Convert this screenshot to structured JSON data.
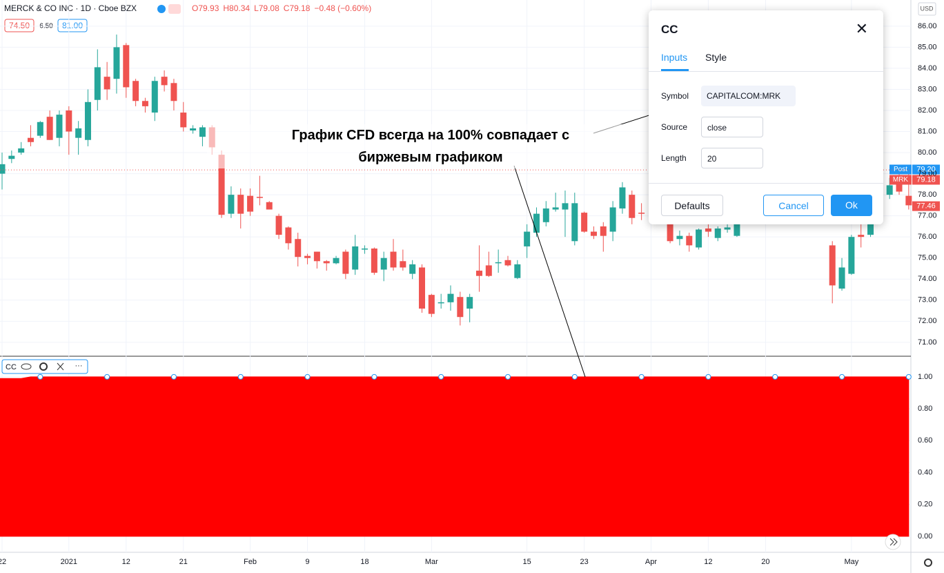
{
  "header": {
    "symbol": "MERCK & CO INC · 1D · Cboe BZX",
    "ohlc": [
      "O79.93",
      "H80.34",
      "L79.08",
      "C79.18",
      "−0.48 (−0.60%)"
    ],
    "boxes": [
      "74.50",
      "6.50",
      "81.00"
    ],
    "currency": "USD"
  },
  "annotation": {
    "lines": [
      "График CFD всегда на 100% совпадает с",
      "биржевым графиком"
    ]
  },
  "dialog": {
    "title": "CC",
    "tabs": [
      "Inputs",
      "Style"
    ],
    "fields": [
      {
        "label": "Symbol",
        "value": "CAPITALCOM:MRK"
      },
      {
        "label": "Source",
        "value": "close"
      },
      {
        "label": "Length",
        "value": "20"
      }
    ],
    "buttons": [
      "Defaults",
      "Cancel",
      "Ok"
    ]
  },
  "chart_data": [
    {
      "type": "candlestick",
      "up_color": "#26a69a",
      "down_color": "#ef5350",
      "series": {
        "open": [
          79.0,
          79.7,
          80.0,
          80.7,
          80.8,
          81.7,
          80.7,
          82.0,
          80.7,
          80.6,
          82.5,
          83.6,
          83.5,
          85.1,
          83.4,
          82.45,
          81.9,
          83.6,
          83.3,
          81.9,
          81.05,
          80.75,
          81.2,
          79.9,
          77.1,
          78.0,
          77.95,
          77.9,
          77.65,
          77.0,
          76.45,
          75.9,
          75.1,
          75.3,
          74.85,
          74.75,
          75.3,
          74.45,
          75.4,
          75.45,
          74.45,
          75.3,
          74.85,
          74.25,
          74.55,
          73.25,
          72.85,
          72.9,
          73.15,
          72.6,
          74.4,
          74.65,
          74.75,
          74.9,
          74.05,
          75.55,
          76.2,
          76.7,
          77.3,
          77.3,
          75.8,
          77.15,
          76.25,
          76.5,
          76.25,
          77.35,
          78.0,
          77.15,
          null,
          null,
          76.6,
          75.9,
          76.05,
          75.5,
          76.4,
          75.95,
          76.35,
          76.05,
          null,
          null,
          null,
          null,
          null,
          null,
          null,
          null,
          null,
          75.6,
          73.55,
          74.25,
          76.1,
          76.1,
          null,
          78.0,
          78.8,
          77.95
        ],
        "high": [
          80.0,
          80.1,
          80.5,
          81.3,
          81.5,
          82.0,
          82.0,
          82.2,
          81.5,
          83.0,
          84.9,
          84.3,
          85.6,
          85.2,
          83.5,
          82.6,
          83.6,
          83.9,
          83.5,
          82.4,
          81.3,
          81.3,
          81.3,
          80.1,
          78.4,
          78.3,
          78.3,
          78.9,
          77.7,
          77.1,
          76.5,
          76.2,
          75.2,
          75.3,
          74.9,
          75.1,
          75.4,
          76.1,
          75.6,
          75.5,
          75.3,
          75.9,
          75.4,
          74.9,
          74.7,
          73.3,
          73.3,
          73.7,
          73.4,
          73.3,
          75.6,
          75.3,
          75.4,
          75.1,
          74.9,
          76.6,
          77.4,
          77.7,
          78.1,
          78.2,
          78.1,
          77.2,
          76.5,
          76.7,
          77.7,
          78.6,
          78.2,
          77.6,
          null,
          null,
          76.7,
          76.3,
          76.2,
          76.4,
          76.6,
          76.5,
          76.7,
          76.7,
          null,
          null,
          null,
          null,
          null,
          null,
          null,
          null,
          null,
          75.8,
          75.0,
          76.1,
          76.6,
          77.0,
          null,
          78.8,
          79.1,
          79.2
        ],
        "low": [
          78.25,
          79.5,
          79.9,
          80.3,
          80.7,
          80.6,
          80.3,
          79.9,
          79.9,
          80.3,
          82.0,
          82.5,
          82.8,
          82.6,
          82.2,
          81.9,
          81.5,
          82.9,
          82.0,
          81.0,
          80.9,
          80.3,
          79.9,
          76.9,
          76.9,
          76.4,
          77.0,
          77.5,
          77.3,
          75.9,
          75.4,
          74.6,
          74.7,
          74.5,
          74.4,
          74.7,
          74.0,
          74.2,
          75.2,
          74.2,
          73.9,
          74.4,
          74.4,
          74.0,
          72.4,
          72.2,
          72.6,
          72.5,
          71.8,
          71.95,
          73.4,
          74.1,
          74.3,
          74.6,
          74.0,
          75.0,
          76.0,
          76.5,
          77.2,
          76.0,
          75.6,
          76.2,
          75.9,
          75.3,
          75.8,
          77.1,
          76.6,
          76.8,
          null,
          null,
          75.7,
          75.6,
          75.3,
          75.4,
          76.0,
          75.8,
          76.2,
          76.0,
          null,
          null,
          null,
          null,
          null,
          null,
          null,
          null,
          null,
          72.85,
          73.45,
          74.2,
          75.5,
          76.0,
          null,
          77.8,
          78.0,
          77.3
        ],
        "close": [
          79.45,
          79.85,
          80.2,
          80.5,
          81.45,
          80.6,
          81.8,
          81.0,
          81.15,
          82.4,
          84.05,
          83.0,
          85.0,
          83.1,
          82.45,
          82.2,
          83.4,
          83.2,
          82.45,
          81.2,
          81.15,
          81.2,
          80.25,
          77.05,
          78.0,
          77.1,
          77.2,
          77.85,
          77.3,
          76.1,
          75.7,
          75.05,
          75.0,
          74.85,
          74.75,
          75.0,
          74.25,
          75.55,
          75.45,
          74.3,
          75.0,
          74.55,
          74.55,
          74.7,
          72.6,
          72.35,
          72.9,
          73.3,
          72.2,
          73.15,
          74.15,
          74.15,
          74.8,
          74.65,
          74.7,
          76.25,
          77.1,
          77.35,
          77.4,
          77.6,
          77.6,
          76.25,
          76.05,
          76.05,
          77.4,
          78.35,
          76.9,
          77.1,
          null,
          null,
          75.8,
          76.05,
          75.6,
          76.35,
          76.25,
          76.4,
          76.45,
          76.6,
          null,
          null,
          null,
          null,
          null,
          null,
          null,
          null,
          null,
          73.7,
          74.55,
          76.0,
          76.0,
          76.6,
          null,
          78.45,
          78.15,
          77.5
        ]
      },
      "ylim": [
        70.34,
        87.24
      ],
      "yticks": [
        {
          "value": 71,
          "label": "71.00"
        },
        {
          "value": 72,
          "label": "72.00"
        },
        {
          "value": 73,
          "label": "73.00"
        },
        {
          "value": 74,
          "label": "74.00"
        },
        {
          "value": 75,
          "label": "75.00"
        },
        {
          "value": 76,
          "label": "76.00"
        },
        {
          "value": 77,
          "label": "77.00"
        },
        {
          "value": 78,
          "label": "78.00"
        },
        {
          "value": 79,
          "label": "79.00"
        },
        {
          "value": 80,
          "label": "80.00"
        },
        {
          "value": 81,
          "label": "81.00"
        },
        {
          "value": 82,
          "label": "82.00"
        },
        {
          "value": 83,
          "label": "83.00"
        },
        {
          "value": 84,
          "label": "84.00"
        },
        {
          "value": 85,
          "label": "85.00"
        },
        {
          "value": 86,
          "label": "86.00"
        }
      ],
      "xticks": [
        {
          "value": 0,
          "label": "22"
        },
        {
          "value": 7,
          "label": "2021"
        },
        {
          "value": 13,
          "label": "12"
        },
        {
          "value": 19,
          "label": "21"
        },
        {
          "value": 26,
          "label": "Feb"
        },
        {
          "value": 32,
          "label": "9"
        },
        {
          "value": 38,
          "label": "18"
        },
        {
          "value": 45,
          "label": "Mar"
        },
        {
          "value": 55,
          "label": "15"
        },
        {
          "value": 61,
          "label": "23"
        },
        {
          "value": 68,
          "label": "Apr"
        },
        {
          "value": 74,
          "label": "12"
        },
        {
          "value": 80,
          "label": "20"
        },
        {
          "value": 89,
          "label": "May"
        }
      ],
      "price_lines": {
        "names": [
          "Post",
          "MRK",
          null
        ],
        "values": [
          79.2,
          79.18,
          77.46
        ],
        "value_labels": [
          "79.20",
          "79.18",
          "77.46"
        ],
        "colors": [
          "#2196f3",
          "#ef5350",
          "#ef5350"
        ]
      },
      "grid": true
    },
    {
      "type": "area",
      "legend": "CC",
      "color": "#ff0000",
      "values": [
        0.99,
        0.99,
        0.99,
        1,
        1,
        1,
        1,
        1,
        1,
        1,
        1,
        1,
        1,
        1,
        1,
        1,
        1,
        1,
        1,
        1,
        1,
        1,
        1,
        1,
        1,
        1,
        1,
        1,
        1,
        1,
        1,
        1,
        1,
        1,
        1,
        1,
        1,
        1,
        1,
        1,
        1,
        1,
        1,
        1,
        1,
        1,
        1,
        1,
        1,
        1,
        1,
        1,
        1,
        1,
        1,
        1,
        1,
        1,
        1,
        1,
        1,
        1,
        1,
        1,
        1,
        1,
        1,
        1,
        1,
        1,
        1,
        1,
        1,
        1,
        1,
        1,
        1,
        1,
        1,
        1,
        1,
        1,
        1,
        1,
        1,
        1,
        1,
        1,
        1,
        1,
        1,
        1,
        1,
        1,
        1,
        1
      ],
      "ylim": [
        -0.1,
        1.125
      ],
      "yticks": [
        {
          "value": 0,
          "label": "0.00"
        },
        {
          "value": 0.2,
          "label": "0.20"
        },
        {
          "value": 0.4,
          "label": "0.40"
        },
        {
          "value": 0.6,
          "label": "0.60"
        },
        {
          "value": 0.8,
          "label": "0.80"
        },
        {
          "value": 1,
          "label": "1.00"
        }
      ],
      "grid": true
    }
  ]
}
